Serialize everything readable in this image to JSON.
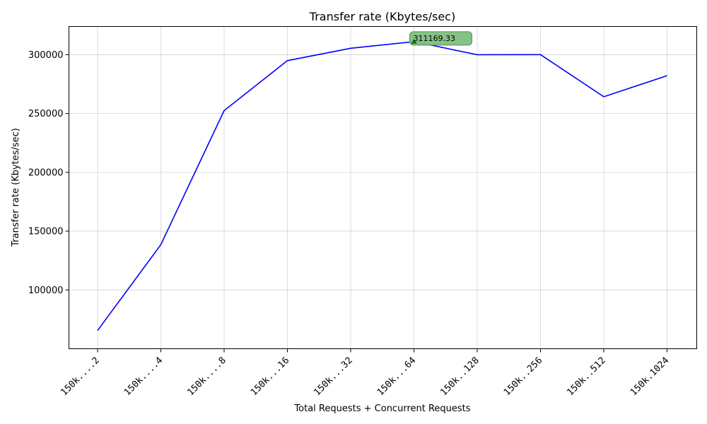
{
  "chart_data": {
    "type": "line",
    "title": "Transfer rate (Kbytes/sec)",
    "xlabel": "Total Requests + Concurrent Requests",
    "ylabel": "Transfer rate (Kbytes/sec)",
    "categories": [
      "150k....2",
      "150k....4",
      "150k....8",
      "150k...16",
      "150k...32",
      "150k...64",
      "150k..128",
      "150k..256",
      "150k..512",
      "150k.1024"
    ],
    "series": [
      {
        "values": [
          65500,
          138500,
          252500,
          295000,
          305500,
          311169.33,
          300000,
          300100,
          264300,
          282200
        ],
        "color": "#0000ff"
      }
    ],
    "ylim": [
      50000,
      324000
    ],
    "yticks": [
      100000,
      150000,
      200000,
      250000,
      300000
    ],
    "ytick_labels": [
      "100000",
      "150000",
      "200000",
      "250000",
      "300000"
    ],
    "grid": true,
    "annotation": {
      "label": "311169.33",
      "category_index": 5,
      "value": 311169.33,
      "marker": "triangle-up",
      "marker_color": "#008000",
      "box_color": "#7fbf7f"
    }
  }
}
